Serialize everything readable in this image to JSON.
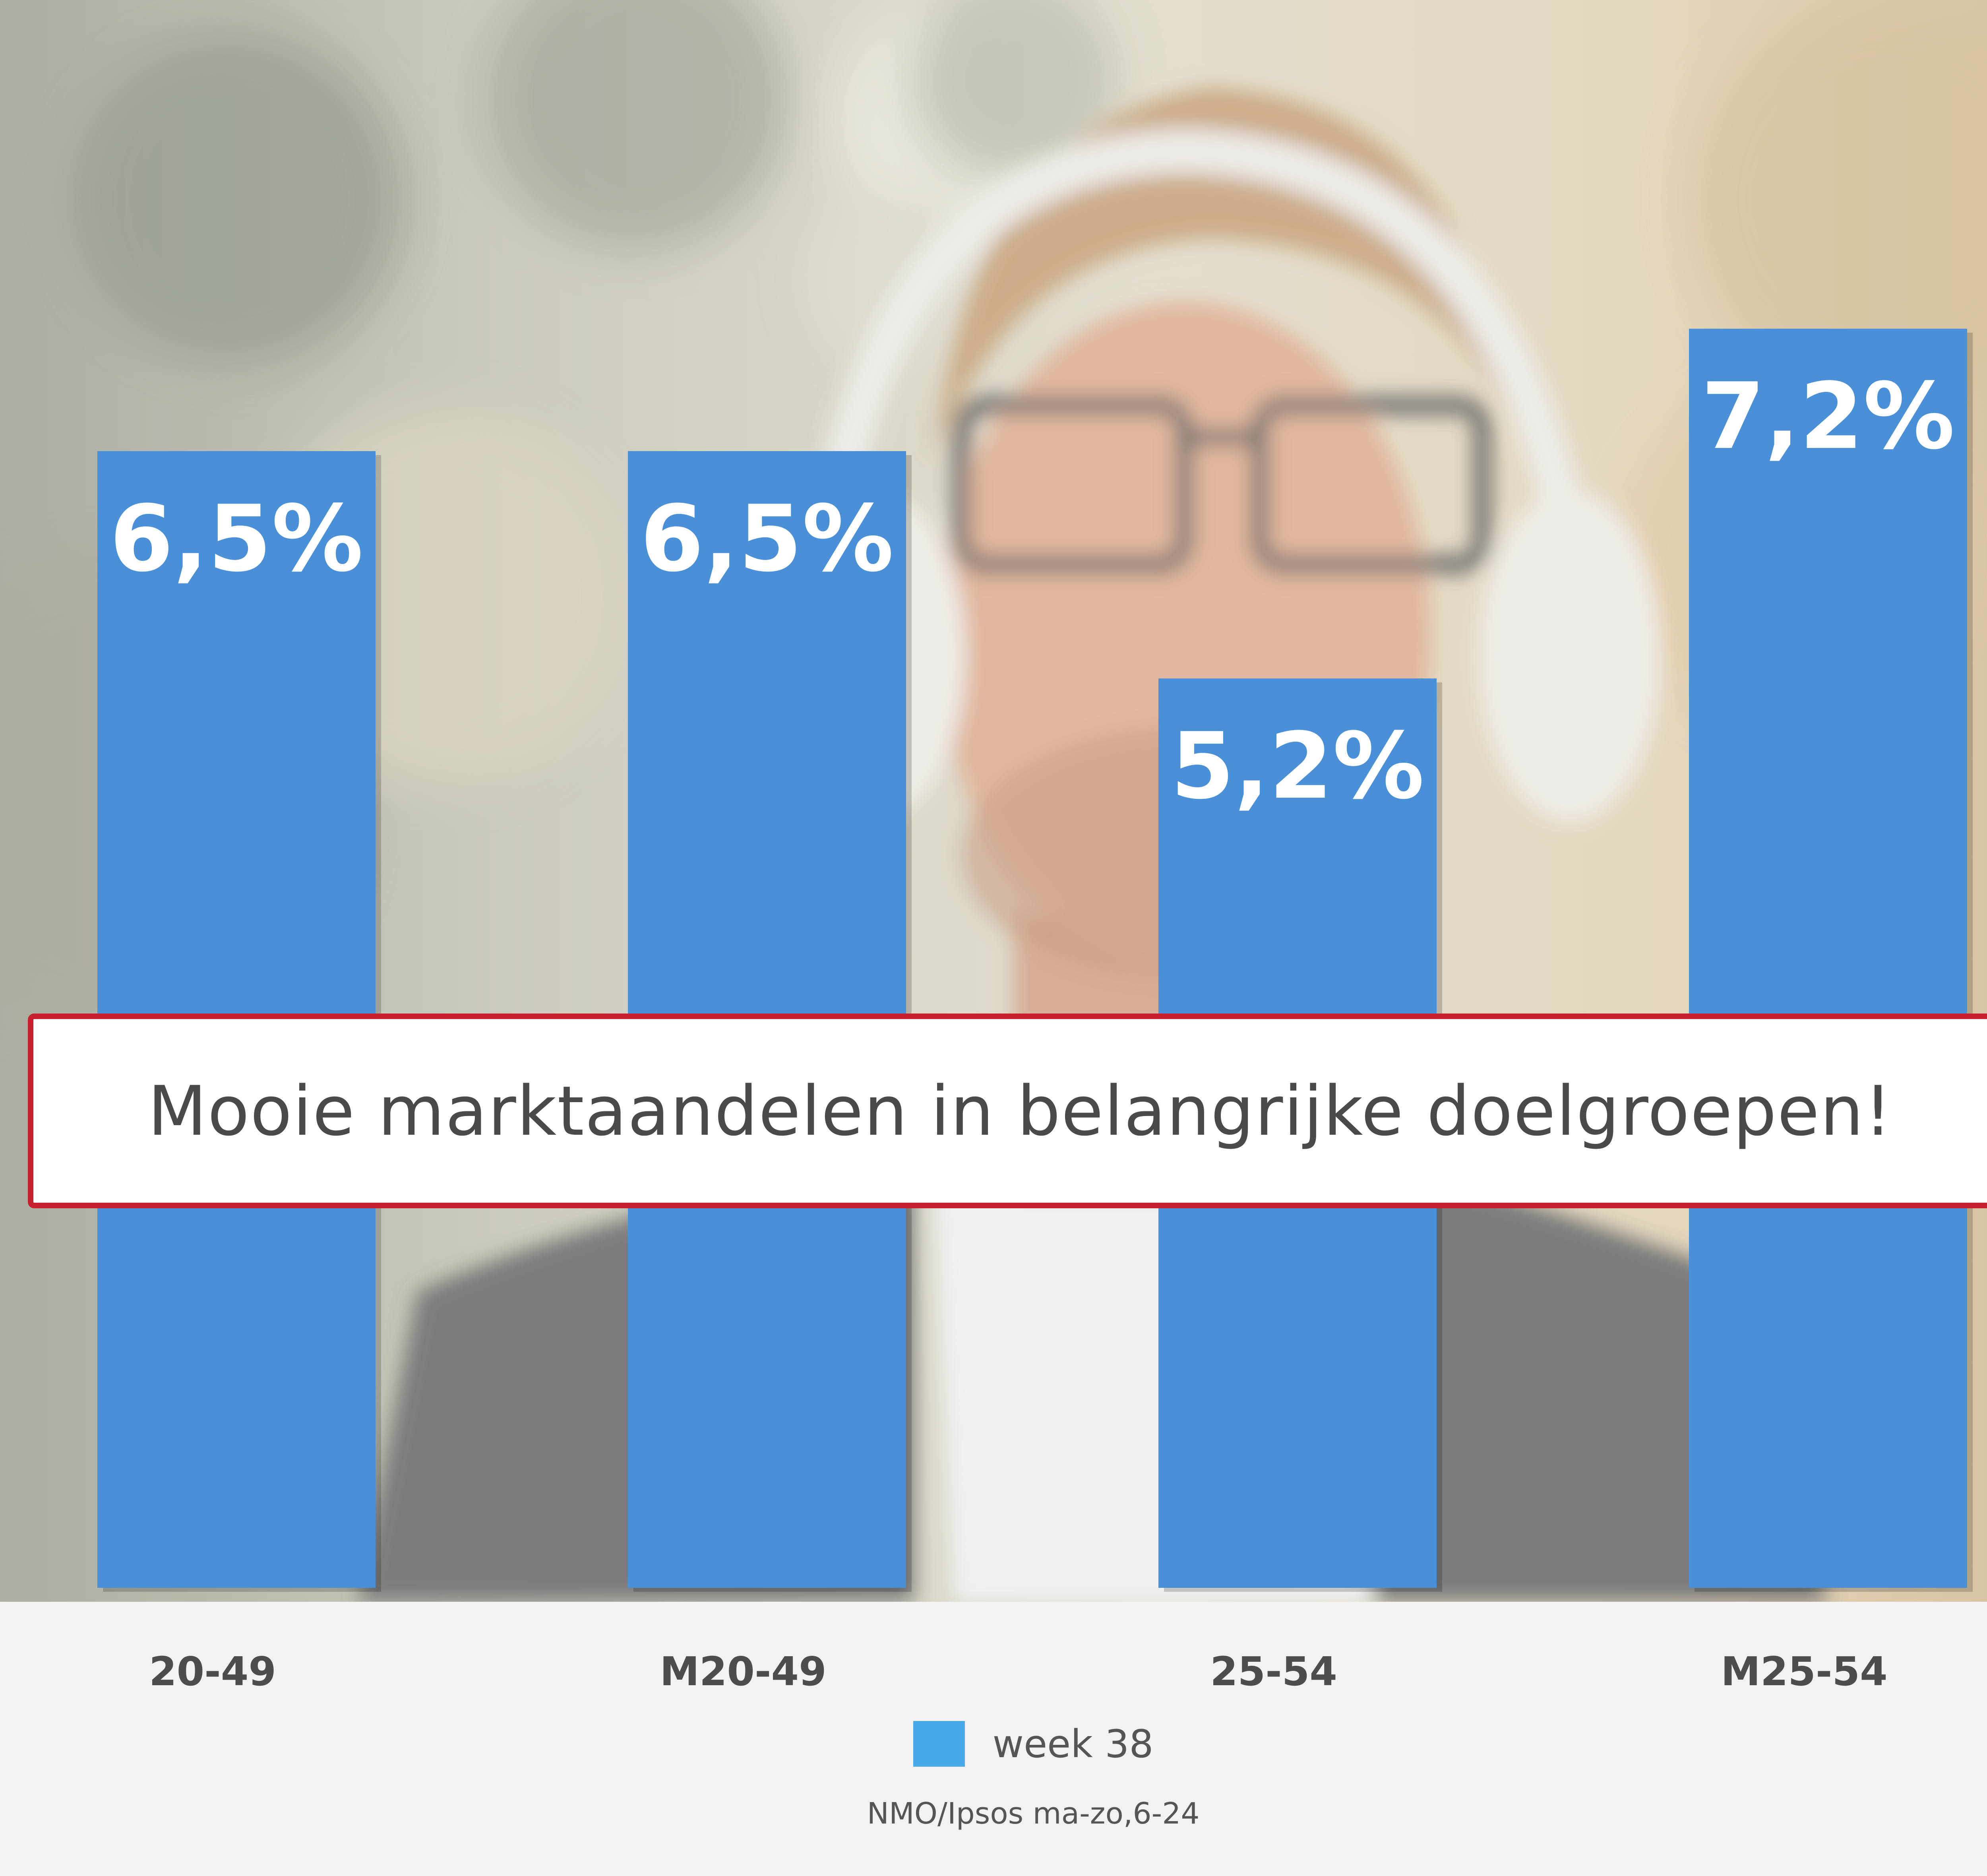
{
  "banner": {
    "text": "Mooie marktaandelen in belangrijke doelgroepen!"
  },
  "chart_data": {
    "type": "bar",
    "categories": [
      "20-49",
      "M20-49",
      "25-54",
      "M25-54"
    ],
    "series": [
      {
        "name": "week 38",
        "values": [
          6.5,
          6.5,
          5.2,
          7.2
        ],
        "labels": [
          "6,5%",
          "6,5%",
          "5,2%",
          "7,2%"
        ]
      }
    ],
    "ylim": [
      0,
      10
    ],
    "grid": false,
    "legend": "bottom-center",
    "title": "",
    "xlabel": "",
    "ylabel": ""
  },
  "legend": {
    "label": "week 38"
  },
  "source": {
    "text": "NMO/Ipsos ma-zo,6-24"
  },
  "colors": {
    "bar": "#4a90d9",
    "legend_swatch": "#47a9e8",
    "banner_border": "#c8202f",
    "panel": "#f2f2f2"
  },
  "background_photo": "man-with-headphones"
}
